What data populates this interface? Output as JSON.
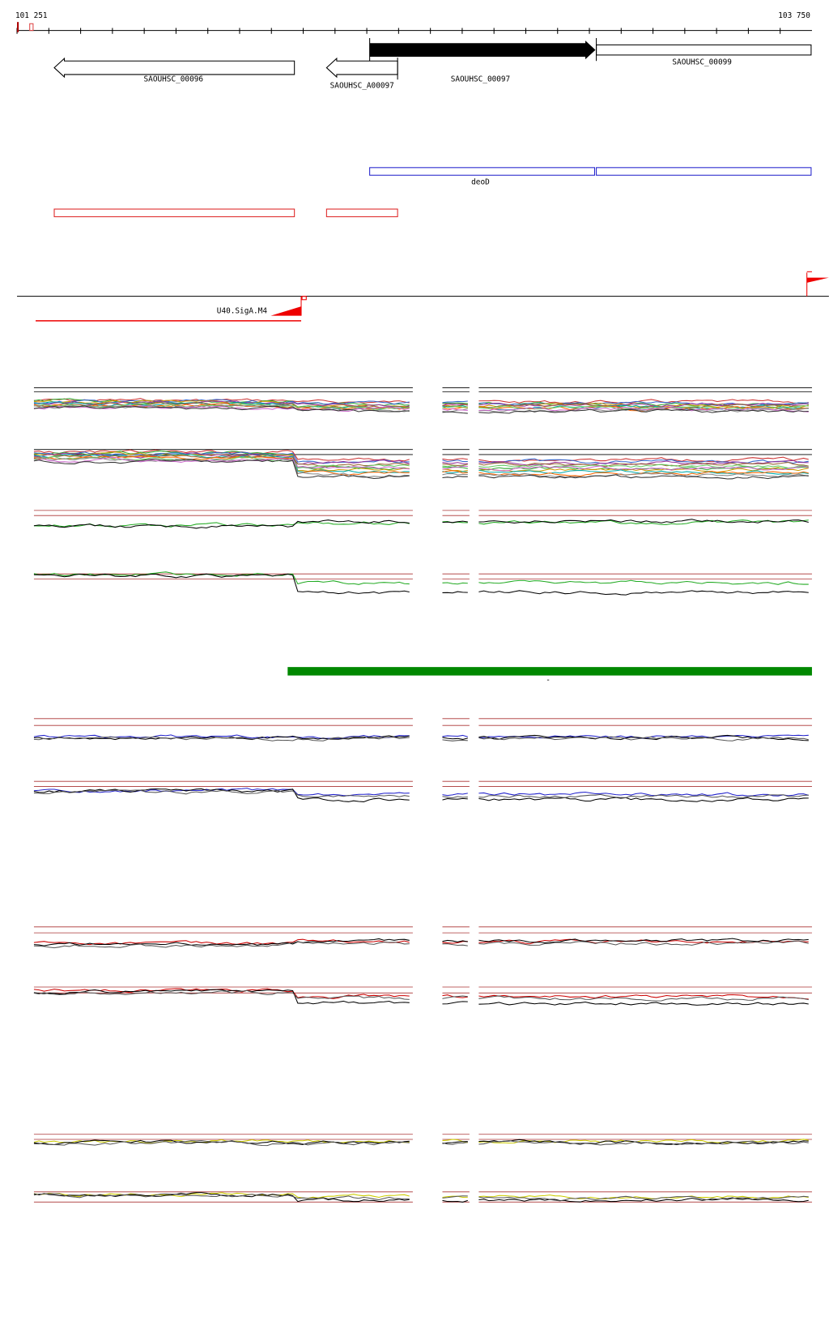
{
  "ruler": {
    "start": "101 251",
    "end": "103 750"
  },
  "genes": [
    {
      "label": "SAOUHSC_00096"
    },
    {
      "label": "SAOUHSC_A00097"
    },
    {
      "label": "SAOUHSC_00097"
    },
    {
      "label": "SAOUHSC_00099"
    }
  ],
  "features": {
    "label": "deoD"
  },
  "motif": {
    "label": "U40.SigA.M4"
  },
  "marker": {
    "label": "-"
  }
}
